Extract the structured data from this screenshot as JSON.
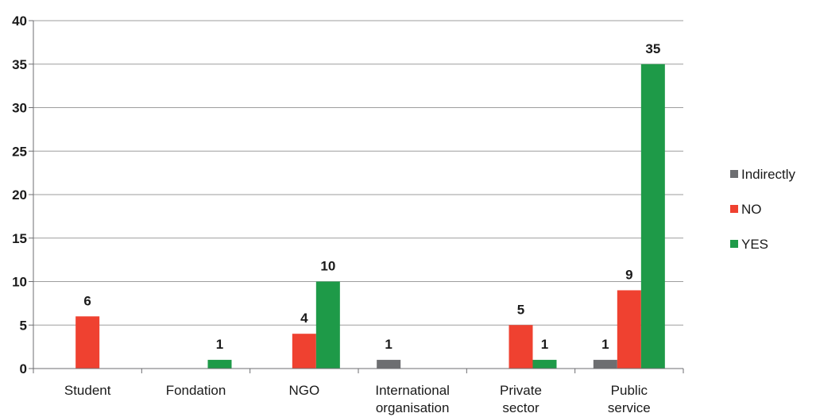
{
  "chart_data": {
    "type": "bar",
    "categories": [
      [
        "Student"
      ],
      [
        "Fondation"
      ],
      [
        "NGO"
      ],
      [
        "International",
        "organisation"
      ],
      [
        "Private",
        "sector"
      ],
      [
        "Public",
        "service"
      ]
    ],
    "series": [
      {
        "name": "Indirectly",
        "color": "#6d6e71",
        "values": [
          0,
          0,
          0,
          1,
          0,
          1
        ]
      },
      {
        "name": "NO",
        "color": "#ef4130",
        "values": [
          6,
          0,
          4,
          0,
          5,
          9
        ]
      },
      {
        "name": "YES",
        "color": "#1e9a48",
        "values": [
          0,
          1,
          10,
          0,
          1,
          35
        ]
      }
    ],
    "data_labels": [
      [
        null,
        null,
        null,
        1,
        null,
        1
      ],
      [
        6,
        null,
        4,
        null,
        5,
        9
      ],
      [
        null,
        1,
        10,
        null,
        1,
        35
      ]
    ],
    "title": "",
    "xlabel": "",
    "ylabel": "",
    "ylim": [
      0,
      40
    ],
    "yticks": [
      0,
      5,
      10,
      15,
      20,
      25,
      30,
      35,
      40
    ],
    "grid": true,
    "legend_position": "right"
  }
}
